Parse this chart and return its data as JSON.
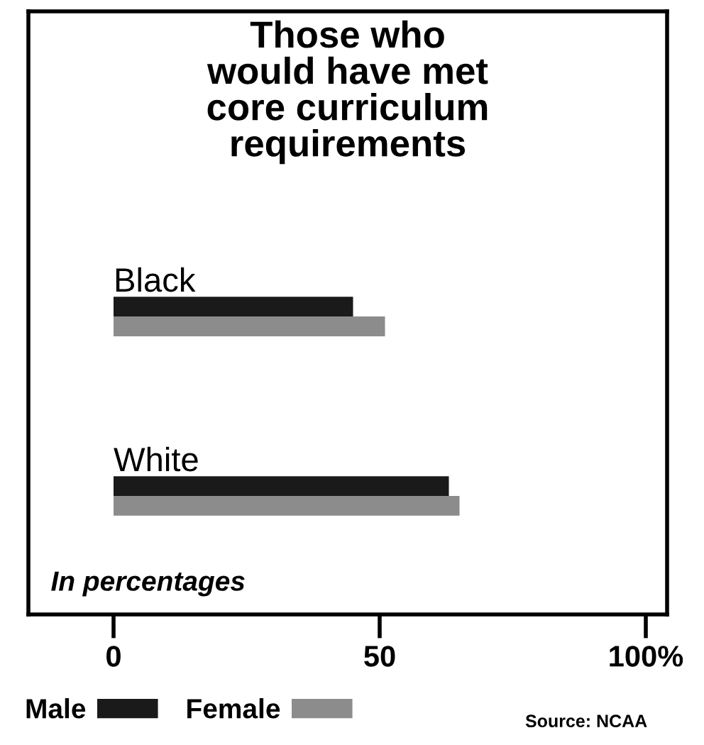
{
  "chart_data": {
    "type": "bar",
    "orientation": "horizontal",
    "title": "Those who\nwould have met\ncore curriculum\nrequirements",
    "categories": [
      "Black",
      "White"
    ],
    "series": [
      {
        "name": "Male",
        "color": "#1a1a1a",
        "values": [
          45,
          63
        ]
      },
      {
        "name": "Female",
        "color": "#8c8c8c",
        "values": [
          51,
          65
        ]
      }
    ],
    "xlim": [
      -16,
      104
    ],
    "xticks": [
      0,
      50,
      {
        "value": 100,
        "label": "100%"
      }
    ],
    "legend": "bottom left",
    "grid": false,
    "annotations": [
      "In percentages",
      "Source: NCAA"
    ]
  }
}
